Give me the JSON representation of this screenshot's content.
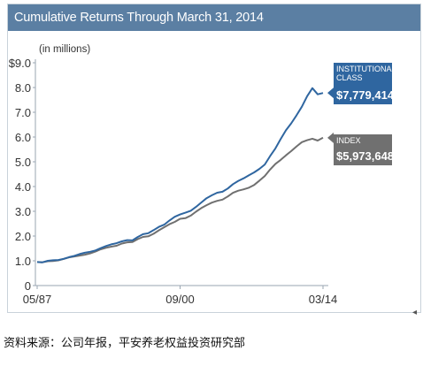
{
  "header": {
    "title": "Cumulative Returns Through March 31, 2014"
  },
  "chart_data": {
    "type": "line",
    "title": "Cumulative Returns Through March 31, 2014",
    "unit_note": "(in millions)",
    "ylim": [
      0,
      9
    ],
    "y_ticks": [
      "$9.0",
      "8.0",
      "7.0",
      "6.0",
      "5.0",
      "4.0",
      "3.0",
      "2.0",
      "1.0",
      "0"
    ],
    "x_ticks": [
      "05/87",
      "09/00",
      "03/14"
    ],
    "x": [
      "05/87",
      "11/87",
      "05/88",
      "11/88",
      "05/89",
      "11/89",
      "05/90",
      "11/90",
      "05/91",
      "11/91",
      "05/92",
      "11/92",
      "05/93",
      "11/93",
      "05/94",
      "11/94",
      "05/95",
      "11/95",
      "05/96",
      "11/96",
      "05/97",
      "11/97",
      "05/98",
      "11/98",
      "05/99",
      "11/99",
      "05/00",
      "09/00",
      "05/01",
      "11/01",
      "05/02",
      "11/02",
      "05/03",
      "11/03",
      "05/04",
      "11/04",
      "05/05",
      "11/05",
      "05/06",
      "11/06",
      "05/07",
      "11/07",
      "05/08",
      "11/08",
      "05/09",
      "11/09",
      "05/10",
      "11/10",
      "05/11",
      "11/11",
      "05/12",
      "11/12",
      "05/13",
      "11/13",
      "03/14"
    ],
    "series": [
      {
        "name": "INSTITUTIONAL CLASS",
        "end_label": "$7,779,414",
        "color": "#2f66a0",
        "values": [
          0.95,
          0.92,
          0.98,
          1.02,
          1.05,
          1.1,
          1.15,
          1.18,
          1.25,
          1.32,
          1.38,
          1.44,
          1.52,
          1.58,
          1.64,
          1.7,
          1.8,
          1.86,
          1.84,
          1.95,
          2.05,
          2.1,
          2.25,
          2.4,
          2.48,
          2.62,
          2.75,
          2.85,
          2.95,
          3.05,
          3.2,
          3.35,
          3.5,
          3.62,
          3.75,
          3.82,
          3.95,
          4.1,
          4.2,
          4.3,
          4.45,
          4.6,
          4.75,
          4.9,
          5.2,
          5.5,
          5.9,
          6.3,
          6.6,
          6.9,
          7.2,
          7.6,
          7.95,
          7.75,
          7.78
        ]
      },
      {
        "name": "INDEX",
        "end_label": "$5,973,648",
        "color": "#707070",
        "values": [
          0.95,
          0.92,
          0.98,
          1.01,
          1.04,
          1.08,
          1.12,
          1.15,
          1.2,
          1.26,
          1.32,
          1.38,
          1.45,
          1.5,
          1.56,
          1.62,
          1.72,
          1.76,
          1.75,
          1.85,
          1.95,
          2.0,
          2.12,
          2.25,
          2.35,
          2.45,
          2.55,
          2.7,
          2.75,
          2.85,
          2.98,
          3.1,
          3.22,
          3.35,
          3.45,
          3.5,
          3.6,
          3.72,
          3.8,
          3.88,
          3.98,
          4.1,
          4.25,
          4.4,
          4.65,
          4.9,
          5.1,
          5.3,
          5.45,
          5.6,
          5.75,
          5.85,
          5.95,
          5.9,
          5.97
        ]
      }
    ],
    "legend_placement": "right-end labels",
    "grid": false
  },
  "caption": {
    "text": "资料来源：公司年报，平安养老权益投资研究部"
  }
}
